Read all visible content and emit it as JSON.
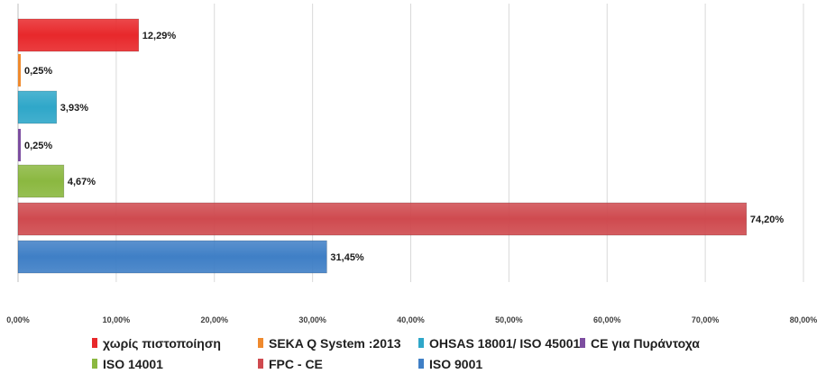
{
  "chart_data": {
    "type": "bar",
    "orientation": "horizontal",
    "title": "",
    "xlabel": "",
    "ylabel": "",
    "xlim": [
      0,
      80
    ],
    "x_ticks": [
      "0,00%",
      "10,00%",
      "20,00%",
      "30,00%",
      "40,00%",
      "50,00%",
      "60,00%",
      "70,00%",
      "80,00%"
    ],
    "grid": "vertical",
    "legend_position": "bottom",
    "categories": [
      "χωρίς πιστοποίηση",
      "SEKA Q System :2013",
      "OHSAS 18001/ ISO 45001",
      "CE για Πυράντοχα",
      "ISO 14001",
      "FPC - CE",
      "ISO 9001"
    ],
    "values": [
      12.29,
      0.25,
      3.93,
      0.25,
      4.67,
      74.2,
      31.45
    ],
    "value_labels": [
      "12,29%",
      "0,25%",
      "3,93%",
      "0,25%",
      "4,67%",
      "74,20%",
      "31,45%"
    ],
    "colors": [
      "#e8282b",
      "#ef8a2e",
      "#2fa7c9",
      "#7d4ea0",
      "#8bb840",
      "#cf4a4f",
      "#3f7fc6"
    ]
  }
}
